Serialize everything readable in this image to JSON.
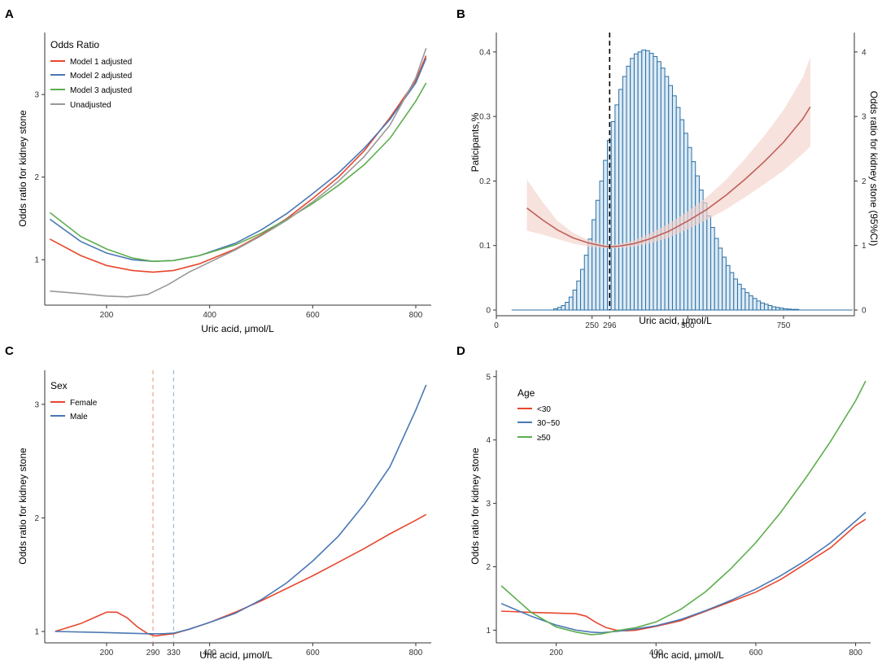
{
  "chart_data": [
    {
      "panel": "A",
      "type": "line",
      "xlabel": "Uric acid, μmol/L",
      "ylabel": "Odds ratio for kidney stone",
      "xlim": [
        80,
        830
      ],
      "ylim": [
        0.45,
        3.75
      ],
      "xticks": [
        200,
        400,
        600,
        800
      ],
      "yticks": [
        1,
        2,
        3
      ],
      "legend_title": "Odds Ratio",
      "series": [
        {
          "name": "Model 1 adjusted",
          "color": "#E8472E",
          "points": [
            [
              90,
              1.25
            ],
            [
              150,
              1.05
            ],
            [
              200,
              0.93
            ],
            [
              250,
              0.87
            ],
            [
              290,
              0.85
            ],
            [
              330,
              0.87
            ],
            [
              380,
              0.95
            ],
            [
              450,
              1.13
            ],
            [
              500,
              1.3
            ],
            [
              550,
              1.5
            ],
            [
              600,
              1.74
            ],
            [
              650,
              2.0
            ],
            [
              700,
              2.32
            ],
            [
              750,
              2.72
            ],
            [
              800,
              3.17
            ],
            [
              820,
              3.47
            ]
          ]
        },
        {
          "name": "Model 2 adjusted",
          "color": "#4A78B5",
          "points": [
            [
              90,
              1.49
            ],
            [
              150,
              1.22
            ],
            [
              200,
              1.08
            ],
            [
              250,
              1.0
            ],
            [
              290,
              0.98
            ],
            [
              330,
              0.99
            ],
            [
              380,
              1.05
            ],
            [
              450,
              1.2
            ],
            [
              500,
              1.36
            ],
            [
              550,
              1.56
            ],
            [
              600,
              1.8
            ],
            [
              650,
              2.05
            ],
            [
              700,
              2.35
            ],
            [
              750,
              2.7
            ],
            [
              800,
              3.14
            ],
            [
              820,
              3.44
            ]
          ]
        },
        {
          "name": "Model 3 adjusted",
          "color": "#5DAE4E",
          "points": [
            [
              90,
              1.57
            ],
            [
              150,
              1.28
            ],
            [
              200,
              1.13
            ],
            [
              250,
              1.02
            ],
            [
              290,
              0.98
            ],
            [
              330,
              0.99
            ],
            [
              380,
              1.05
            ],
            [
              450,
              1.18
            ],
            [
              500,
              1.32
            ],
            [
              550,
              1.49
            ],
            [
              600,
              1.68
            ],
            [
              650,
              1.9
            ],
            [
              700,
              2.15
            ],
            [
              750,
              2.47
            ],
            [
              800,
              2.92
            ],
            [
              820,
              3.14
            ]
          ]
        },
        {
          "name": "Unadjusted",
          "color": "#999999",
          "points": [
            [
              90,
              0.62
            ],
            [
              150,
              0.59
            ],
            [
              200,
              0.56
            ],
            [
              240,
              0.55
            ],
            [
              280,
              0.58
            ],
            [
              320,
              0.7
            ],
            [
              360,
              0.85
            ],
            [
              400,
              0.97
            ],
            [
              450,
              1.12
            ],
            [
              500,
              1.29
            ],
            [
              550,
              1.48
            ],
            [
              600,
              1.7
            ],
            [
              650,
              1.95
            ],
            [
              700,
              2.25
            ],
            [
              750,
              2.63
            ],
            [
              800,
              3.2
            ],
            [
              820,
              3.56
            ]
          ]
        }
      ]
    },
    {
      "panel": "B",
      "type": "bar",
      "xlabel": "Uric acid, μmol/L",
      "ylabel": "Paticipants,%",
      "ylabel_right": "Odds ratio for kidney stone (95%CI)",
      "xlim": [
        0,
        935
      ],
      "ylim": [
        0,
        0.42
      ],
      "ylim_right": [
        0,
        4.2
      ],
      "xticks": [
        0,
        250,
        296,
        500,
        750
      ],
      "tick_labels": [
        "0",
        "250",
        "296",
        "500",
        "750"
      ],
      "yticks": [
        0,
        0.1,
        0.2,
        0.3,
        0.4
      ],
      "yticks_right": [
        0,
        1,
        2,
        3,
        4
      ],
      "reference_line": 296,
      "histogram": {
        "start": 40,
        "bin_width": 10,
        "color": "#2C6FA3",
        "fill": "#DCEBF5",
        "values": [
          0,
          0,
          0,
          0,
          0,
          0,
          0,
          0,
          0,
          0,
          0,
          0.002,
          0.004,
          0.007,
          0.012,
          0.02,
          0.031,
          0.045,
          0.063,
          0.085,
          0.11,
          0.14,
          0.17,
          0.2,
          0.232,
          0.263,
          0.292,
          0.318,
          0.342,
          0.362,
          0.378,
          0.39,
          0.397,
          0.4,
          0.403,
          0.402,
          0.398,
          0.393,
          0.385,
          0.375,
          0.362,
          0.348,
          0.332,
          0.314,
          0.295,
          0.274,
          0.252,
          0.23,
          0.208,
          0.186,
          0.166,
          0.146,
          0.128,
          0.111,
          0.096,
          0.082,
          0.069,
          0.058,
          0.048,
          0.04,
          0.033,
          0.027,
          0.022,
          0.018,
          0.014,
          0.011,
          0.009,
          0.007,
          0.005,
          0.004,
          0.003,
          0.002,
          0.0015,
          0.001,
          0.001,
          0,
          0,
          0,
          0,
          0,
          0,
          0,
          0,
          0,
          0,
          0,
          0,
          0,
          0
        ]
      },
      "or_curve": {
        "color": "#C0605A",
        "band_color": "#F2D3CC",
        "points": [
          [
            80,
            1.58
          ],
          [
            120,
            1.4
          ],
          [
            160,
            1.24
          ],
          [
            200,
            1.12
          ],
          [
            240,
            1.04
          ],
          [
            280,
            0.99
          ],
          [
            296,
            0.98
          ],
          [
            320,
            0.99
          ],
          [
            360,
            1.03
          ],
          [
            400,
            1.1
          ],
          [
            450,
            1.22
          ],
          [
            500,
            1.38
          ],
          [
            550,
            1.56
          ],
          [
            600,
            1.78
          ],
          [
            650,
            2.03
          ],
          [
            700,
            2.3
          ],
          [
            750,
            2.6
          ],
          [
            800,
            2.96
          ],
          [
            820,
            3.15
          ]
        ],
        "lower": [
          [
            80,
            1.23
          ],
          [
            120,
            1.17
          ],
          [
            160,
            1.1
          ],
          [
            200,
            1.03
          ],
          [
            240,
            0.98
          ],
          [
            280,
            0.96
          ],
          [
            296,
            0.96
          ],
          [
            320,
            0.96
          ],
          [
            360,
            0.98
          ],
          [
            400,
            1.03
          ],
          [
            450,
            1.12
          ],
          [
            500,
            1.25
          ],
          [
            550,
            1.4
          ],
          [
            600,
            1.56
          ],
          [
            650,
            1.75
          ],
          [
            700,
            1.95
          ],
          [
            750,
            2.16
          ],
          [
            800,
            2.42
          ],
          [
            820,
            2.54
          ]
        ],
        "upper": [
          [
            80,
            2.02
          ],
          [
            120,
            1.68
          ],
          [
            160,
            1.38
          ],
          [
            200,
            1.2
          ],
          [
            240,
            1.09
          ],
          [
            280,
            1.02
          ],
          [
            296,
            1.01
          ],
          [
            320,
            1.02
          ],
          [
            360,
            1.08
          ],
          [
            400,
            1.18
          ],
          [
            450,
            1.34
          ],
          [
            500,
            1.53
          ],
          [
            550,
            1.75
          ],
          [
            600,
            2.02
          ],
          [
            650,
            2.35
          ],
          [
            700,
            2.7
          ],
          [
            750,
            3.1
          ],
          [
            800,
            3.6
          ],
          [
            820,
            3.92
          ]
        ]
      }
    },
    {
      "panel": "C",
      "type": "line",
      "xlabel": "Uric acid, μmol/L",
      "ylabel": "Odds ratio for kidney stone",
      "xlim": [
        80,
        830
      ],
      "ylim": [
        0.9,
        3.3
      ],
      "xticks": [
        200,
        290,
        330,
        400,
        600,
        800
      ],
      "yticks": [
        1,
        2,
        3
      ],
      "legend_title": "Sex",
      "reference_lines": [
        {
          "x": 290,
          "color": "#F0A08E"
        },
        {
          "x": 330,
          "color": "#9DB8D8"
        }
      ],
      "series": [
        {
          "name": "Female",
          "color": "#E8472E",
          "points": [
            [
              100,
              1.0
            ],
            [
              150,
              1.07
            ],
            [
              180,
              1.13
            ],
            [
              200,
              1.17
            ],
            [
              220,
              1.17
            ],
            [
              240,
              1.12
            ],
            [
              260,
              1.04
            ],
            [
              280,
              0.98
            ],
            [
              295,
              0.96
            ],
            [
              310,
              0.97
            ],
            [
              330,
              0.98
            ],
            [
              360,
              1.02
            ],
            [
              400,
              1.08
            ],
            [
              450,
              1.17
            ],
            [
              500,
              1.27
            ],
            [
              550,
              1.38
            ],
            [
              600,
              1.49
            ],
            [
              650,
              1.61
            ],
            [
              700,
              1.73
            ],
            [
              750,
              1.86
            ],
            [
              800,
              1.98
            ],
            [
              820,
              2.03
            ]
          ]
        },
        {
          "name": "Male",
          "color": "#4A78B5",
          "points": [
            [
              100,
              1.0
            ],
            [
              200,
              0.99
            ],
            [
              280,
              0.98
            ],
            [
              310,
              0.98
            ],
            [
              330,
              0.985
            ],
            [
              360,
              1.02
            ],
            [
              400,
              1.08
            ],
            [
              450,
              1.16
            ],
            [
              500,
              1.28
            ],
            [
              550,
              1.43
            ],
            [
              600,
              1.62
            ],
            [
              650,
              1.84
            ],
            [
              700,
              2.12
            ],
            [
              750,
              2.45
            ],
            [
              800,
              2.95
            ],
            [
              820,
              3.17
            ]
          ]
        }
      ]
    },
    {
      "panel": "D",
      "type": "line",
      "xlabel": "Uric acid, μmol/L",
      "ylabel": "Odds ratio for kidney stone",
      "xlim": [
        80,
        830
      ],
      "ylim": [
        0.8,
        5.1
      ],
      "xticks": [
        200,
        400,
        600,
        800
      ],
      "yticks": [
        1,
        2,
        3,
        4,
        5
      ],
      "legend_title": "Age",
      "series": [
        {
          "name": "<30",
          "color": "#E8472E",
          "points": [
            [
              90,
              1.3
            ],
            [
              150,
              1.28
            ],
            [
              200,
              1.27
            ],
            [
              240,
              1.26
            ],
            [
              260,
              1.22
            ],
            [
              280,
              1.12
            ],
            [
              300,
              1.04
            ],
            [
              320,
              1.0
            ],
            [
              340,
              0.99
            ],
            [
              360,
              1.0
            ],
            [
              400,
              1.06
            ],
            [
              450,
              1.15
            ],
            [
              500,
              1.3
            ],
            [
              550,
              1.45
            ],
            [
              600,
              1.6
            ],
            [
              650,
              1.8
            ],
            [
              700,
              2.05
            ],
            [
              750,
              2.3
            ],
            [
              800,
              2.65
            ],
            [
              820,
              2.75
            ]
          ]
        },
        {
          "name": "30~50",
          "color": "#4A78B5",
          "points": [
            [
              90,
              1.42
            ],
            [
              150,
              1.22
            ],
            [
              200,
              1.08
            ],
            [
              240,
              1.0
            ],
            [
              270,
              0.97
            ],
            [
              290,
              0.96
            ],
            [
              320,
              0.98
            ],
            [
              360,
              1.02
            ],
            [
              400,
              1.07
            ],
            [
              450,
              1.17
            ],
            [
              500,
              1.31
            ],
            [
              550,
              1.47
            ],
            [
              600,
              1.65
            ],
            [
              650,
              1.86
            ],
            [
              700,
              2.1
            ],
            [
              750,
              2.38
            ],
            [
              800,
              2.72
            ],
            [
              820,
              2.86
            ]
          ]
        },
        {
          "name": "≥50",
          "color": "#5DAE4E",
          "points": [
            [
              90,
              1.7
            ],
            [
              150,
              1.28
            ],
            [
              200,
              1.05
            ],
            [
              240,
              0.97
            ],
            [
              270,
              0.93
            ],
            [
              290,
              0.94
            ],
            [
              320,
              0.99
            ],
            [
              360,
              1.04
            ],
            [
              400,
              1.13
            ],
            [
              450,
              1.33
            ],
            [
              500,
              1.61
            ],
            [
              550,
              1.97
            ],
            [
              600,
              2.38
            ],
            [
              650,
              2.86
            ],
            [
              700,
              3.4
            ],
            [
              750,
              3.98
            ],
            [
              800,
              4.62
            ],
            [
              820,
              4.93
            ]
          ]
        }
      ]
    }
  ]
}
